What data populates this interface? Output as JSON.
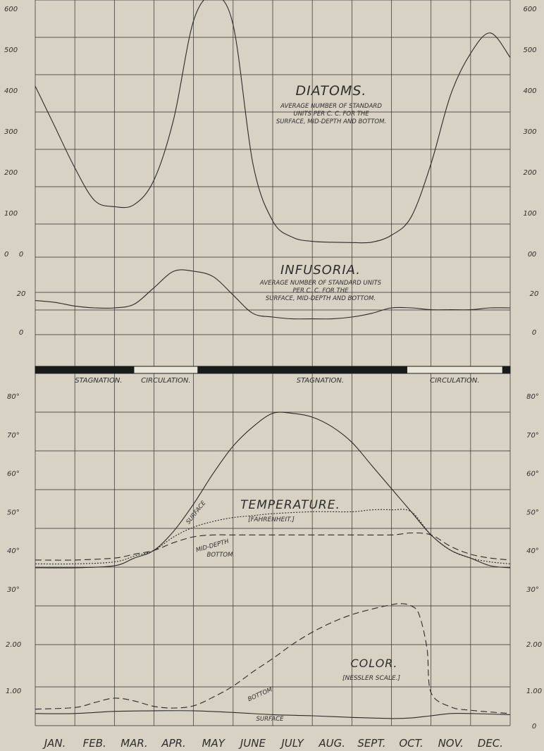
{
  "months": [
    "JAN.",
    "FEB.",
    "MAR.",
    "APR.",
    "MAY",
    "JUNE",
    "JULY",
    "AUG.",
    "SEPT.",
    "OCT.",
    "NOV.",
    "DEC."
  ],
  "seasons": [
    "STAGNATION.",
    "CIRCULATION.",
    "STAGNATION.",
    "CIRCULATION."
  ],
  "chart_data": [
    {
      "type": "line",
      "title": "DIATOMS.",
      "subtitle": [
        "AVERAGE NUMBER OF STANDARD",
        "UNITS PER C. C. FOR THE",
        "SURFACE, MID-DEPTH AND BOTTOM."
      ],
      "ylim": [
        0,
        600
      ],
      "y_ticks_left": [
        "0",
        "100",
        "200",
        "300",
        "400",
        "500",
        "600"
      ],
      "y_ticks_right": [
        "0",
        "100",
        "200",
        "300",
        "400",
        "500",
        "600"
      ],
      "series": [
        {
          "x": [
            0,
            0.5,
            1,
            1.5,
            2,
            2.5,
            3,
            3.5,
            4,
            4.5,
            5,
            5.5,
            6,
            6.5,
            7,
            7.5,
            8,
            8.5,
            9,
            9.5,
            10,
            10.5,
            11,
            11.5,
            12
          ],
          "values": [
            410,
            310,
            210,
            130,
            115,
            120,
            180,
            330,
            570,
            630,
            560,
            220,
            80,
            40,
            30,
            28,
            27,
            28,
            45,
            90,
            220,
            390,
            490,
            540,
            480
          ]
        }
      ]
    },
    {
      "type": "line",
      "title": "INFUSORIA.",
      "subtitle": [
        "AVERAGE NUMBER OF STANDARD UNITS",
        "PER C. C. FOR THE",
        "SURFACE, MID-DEPTH AND BOTTOM."
      ],
      "ylim": [
        0,
        40
      ],
      "y_ticks_left": [
        "0",
        "20",
        "0"
      ],
      "y_ticks_right": [
        "0",
        "20",
        "0"
      ],
      "series": [
        {
          "x": [
            0,
            0.5,
            1,
            1.5,
            2,
            2.5,
            3,
            3.5,
            4,
            4.5,
            5,
            5.5,
            6,
            6.5,
            7,
            7.5,
            8,
            8.5,
            9,
            9.5,
            10,
            10.5,
            11,
            11.5,
            12
          ],
          "values": [
            19,
            18,
            16,
            15,
            15,
            17,
            26,
            35,
            35,
            32,
            22,
            12,
            10,
            9,
            9,
            9,
            10,
            12,
            15,
            15,
            14,
            14,
            14,
            15,
            15
          ]
        }
      ]
    },
    {
      "type": "line",
      "title": "TEMPERATURE.",
      "subtitle": [
        "[FAHRENHEIT.]"
      ],
      "ylim": [
        30,
        80
      ],
      "y_ticks_left": [
        "30°",
        "40°",
        "50°",
        "60°",
        "70°",
        "80°"
      ],
      "y_ticks_right": [
        "30°",
        "40°",
        "50°",
        "60°",
        "70°",
        "80°"
      ],
      "series": [
        {
          "name": "SURFACE",
          "style": "solid",
          "x": [
            0,
            1,
            2,
            2.5,
            3,
            3.5,
            4,
            4.5,
            5,
            5.5,
            6,
            6.5,
            7,
            7.5,
            8,
            8.5,
            9,
            9.5,
            10,
            10.5,
            11,
            11.5,
            12
          ],
          "values": [
            35.5,
            35.5,
            36,
            38,
            40,
            45,
            52,
            60,
            67,
            72,
            75.5,
            75.5,
            74.5,
            72,
            68,
            62,
            56,
            50,
            44,
            40,
            38,
            36,
            35.5
          ]
        },
        {
          "name": "MID-DEPTH",
          "style": "dotted",
          "x": [
            0,
            1,
            2,
            2.5,
            3,
            3.5,
            4,
            4.5,
            5,
            5.5,
            6,
            7,
            8,
            8.5,
            9,
            9.5,
            10,
            10.5,
            11,
            11.5,
            12
          ],
          "values": [
            36.5,
            36.5,
            37,
            38.5,
            40,
            43.5,
            46,
            47.5,
            48.5,
            49,
            49.5,
            50,
            50,
            50.5,
            50.5,
            50,
            44,
            40,
            38,
            37,
            36.5
          ]
        },
        {
          "name": "BOTTOM",
          "style": "dashed",
          "x": [
            0,
            1,
            2,
            2.5,
            3,
            3.5,
            4,
            4.5,
            5,
            6,
            7,
            8,
            9,
            9.5,
            10,
            10.5,
            11,
            11.5,
            12
          ],
          "values": [
            37.5,
            37.5,
            38,
            39,
            40,
            42,
            43.5,
            44,
            44,
            44,
            44,
            44,
            44,
            44.5,
            44,
            41,
            39,
            38,
            37.5
          ]
        }
      ]
    },
    {
      "type": "line",
      "title": "COLOR.",
      "subtitle": [
        "[NESSLER SCALE.]"
      ],
      "ylim": [
        0,
        2.5
      ],
      "y_ticks_left": [
        "1.00",
        "2.00"
      ],
      "y_ticks_right": [
        "0",
        "1.00",
        "2.00"
      ],
      "series": [
        {
          "name": "SURFACE",
          "style": "solid",
          "x": [
            0,
            1,
            2,
            3,
            4,
            5,
            6,
            7,
            8,
            9,
            9.5,
            10,
            10.5,
            11,
            12
          ],
          "values": [
            0.22,
            0.22,
            0.26,
            0.27,
            0.27,
            0.24,
            0.2,
            0.18,
            0.15,
            0.13,
            0.14,
            0.18,
            0.22,
            0.22,
            0.2
          ]
        },
        {
          "name": "BOTTOM",
          "style": "dashed",
          "x": [
            0,
            1,
            1.5,
            2,
            2.5,
            3,
            3.5,
            4,
            4.5,
            5,
            5.5,
            6,
            6.5,
            7,
            7.5,
            8,
            8.5,
            9,
            9.25,
            9.5,
            9.7,
            9.9,
            10,
            10.5,
            11,
            12
          ],
          "values": [
            0.3,
            0.33,
            0.42,
            0.5,
            0.45,
            0.35,
            0.32,
            0.36,
            0.52,
            0.72,
            0.98,
            1.22,
            1.48,
            1.7,
            1.88,
            2.02,
            2.12,
            2.2,
            2.22,
            2.18,
            2.02,
            1.4,
            0.6,
            0.34,
            0.28,
            0.22
          ]
        }
      ]
    }
  ]
}
